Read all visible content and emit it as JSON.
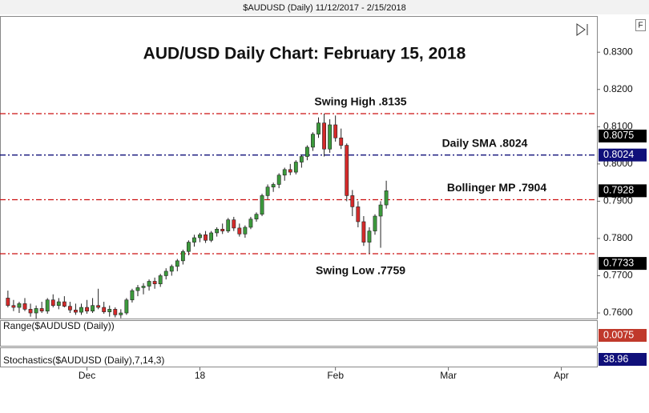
{
  "chart_data": {
    "type": "candlestick",
    "header": "$AUDUSD (Daily)  11/12/2017 - 2/15/2018",
    "title": "AUD/USD Daily Chart: February 15, 2018",
    "ylim": [
      0.7585,
      0.8395
    ],
    "yticks": [
      {
        "value": 0.83,
        "label": "0.8300"
      },
      {
        "value": 0.82,
        "label": "0.8200"
      },
      {
        "value": 0.81,
        "label": "0.8100"
      },
      {
        "value": 0.8,
        "label": "0.8000"
      },
      {
        "value": 0.79,
        "label": "0.7900"
      },
      {
        "value": 0.78,
        "label": "0.7800"
      },
      {
        "value": 0.77,
        "label": "0.7700"
      },
      {
        "value": 0.76,
        "label": "0.7600"
      }
    ],
    "xlim": [
      -1.4,
      104.3
    ],
    "xticks": [
      {
        "value": 14,
        "label": "Dec"
      },
      {
        "value": 34,
        "label": "18"
      },
      {
        "value": 58,
        "label": "Feb"
      },
      {
        "value": 78,
        "label": "Mar"
      },
      {
        "value": 98,
        "label": "Apr"
      }
    ],
    "up_color": "#3c9a3c",
    "down_color": "#d42a2a",
    "ohlc": [
      [
        0.764,
        0.766,
        0.7615,
        0.762
      ],
      [
        0.762,
        0.7635,
        0.7605,
        0.7615
      ],
      [
        0.7615,
        0.763,
        0.76,
        0.7625
      ],
      [
        0.7625,
        0.764,
        0.7605,
        0.761
      ],
      [
        0.761,
        0.7625,
        0.759,
        0.76
      ],
      [
        0.76,
        0.762,
        0.7585,
        0.7612
      ],
      [
        0.7612,
        0.763,
        0.76,
        0.7605
      ],
      [
        0.7605,
        0.764,
        0.7598,
        0.7635
      ],
      [
        0.7635,
        0.765,
        0.7615,
        0.762
      ],
      [
        0.762,
        0.764,
        0.761,
        0.763
      ],
      [
        0.763,
        0.7645,
        0.7615,
        0.7618
      ],
      [
        0.7618,
        0.763,
        0.76,
        0.7608
      ],
      [
        0.7608,
        0.7625,
        0.7595,
        0.7602
      ],
      [
        0.7602,
        0.7625,
        0.7595,
        0.7615
      ],
      [
        0.7615,
        0.7635,
        0.7598,
        0.7605
      ],
      [
        0.7605,
        0.764,
        0.76,
        0.762
      ],
      [
        0.762,
        0.7665,
        0.761,
        0.7615
      ],
      [
        0.7615,
        0.763,
        0.7598,
        0.7603
      ],
      [
        0.7603,
        0.762,
        0.759,
        0.761
      ],
      [
        0.761,
        0.7615,
        0.7588,
        0.7595
      ],
      [
        0.7595,
        0.761,
        0.7586,
        0.76
      ],
      [
        0.76,
        0.764,
        0.7595,
        0.7635
      ],
      [
        0.7635,
        0.7665,
        0.7628,
        0.766
      ],
      [
        0.766,
        0.7675,
        0.7645,
        0.7668
      ],
      [
        0.7668,
        0.768,
        0.765,
        0.7672
      ],
      [
        0.7672,
        0.769,
        0.766,
        0.7685
      ],
      [
        0.7685,
        0.7695,
        0.7665,
        0.7678
      ],
      [
        0.7678,
        0.7705,
        0.767,
        0.77
      ],
      [
        0.77,
        0.772,
        0.769,
        0.7712
      ],
      [
        0.7712,
        0.773,
        0.77,
        0.7725
      ],
      [
        0.7725,
        0.7745,
        0.7712,
        0.774
      ],
      [
        0.774,
        0.777,
        0.773,
        0.7765
      ],
      [
        0.7765,
        0.7795,
        0.7755,
        0.779
      ],
      [
        0.779,
        0.781,
        0.7778,
        0.7802
      ],
      [
        0.7802,
        0.7815,
        0.779,
        0.781
      ],
      [
        0.781,
        0.782,
        0.7788,
        0.7795
      ],
      [
        0.7795,
        0.782,
        0.779,
        0.7815
      ],
      [
        0.7815,
        0.783,
        0.7805,
        0.7825
      ],
      [
        0.7825,
        0.784,
        0.7812,
        0.782
      ],
      [
        0.782,
        0.7855,
        0.7815,
        0.785
      ],
      [
        0.785,
        0.7858,
        0.782,
        0.7828
      ],
      [
        0.7828,
        0.784,
        0.7805,
        0.7812
      ],
      [
        0.7812,
        0.7835,
        0.7802,
        0.783
      ],
      [
        0.783,
        0.7858,
        0.7825,
        0.7852
      ],
      [
        0.7852,
        0.787,
        0.7845,
        0.7865
      ],
      [
        0.7865,
        0.792,
        0.786,
        0.7915
      ],
      [
        0.7915,
        0.7945,
        0.7905,
        0.7938
      ],
      [
        0.7938,
        0.795,
        0.7925,
        0.7945
      ],
      [
        0.7945,
        0.7975,
        0.7935,
        0.797
      ],
      [
        0.797,
        0.799,
        0.7955,
        0.7985
      ],
      [
        0.7985,
        0.8,
        0.797,
        0.7978
      ],
      [
        0.7978,
        0.801,
        0.7972,
        0.8005
      ],
      [
        0.8005,
        0.8025,
        0.799,
        0.802
      ],
      [
        0.802,
        0.805,
        0.801,
        0.8045
      ],
      [
        0.8045,
        0.8085,
        0.8035,
        0.808
      ],
      [
        0.808,
        0.8125,
        0.807,
        0.811
      ],
      [
        0.811,
        0.8135,
        0.802,
        0.804
      ],
      [
        0.804,
        0.812,
        0.803,
        0.8105
      ],
      [
        0.8105,
        0.813,
        0.806,
        0.807
      ],
      [
        0.807,
        0.8095,
        0.804,
        0.805
      ],
      [
        0.805,
        0.8055,
        0.79,
        0.7915
      ],
      [
        0.7915,
        0.793,
        0.786,
        0.7885
      ],
      [
        0.7885,
        0.79,
        0.783,
        0.7845
      ],
      [
        0.7845,
        0.786,
        0.778,
        0.779
      ],
      [
        0.779,
        0.783,
        0.7759,
        0.782
      ],
      [
        0.782,
        0.7865,
        0.781,
        0.786
      ],
      [
        0.786,
        0.79,
        0.7775,
        0.789
      ],
      [
        0.789,
        0.7955,
        0.788,
        0.7928
      ]
    ],
    "levels": [
      {
        "label": "Swing High .8135",
        "value": 0.8135,
        "color": "#cc1111"
      },
      {
        "label": "Daily SMA .8024",
        "value": 0.8024,
        "color": "#10107a"
      },
      {
        "label": "Bollinger MP .7904",
        "value": 0.7904,
        "color": "#cc1111"
      },
      {
        "label": "Swing Low .7759",
        "value": 0.7759,
        "color": "#cc1111"
      }
    ],
    "price_tags": [
      {
        "value": 0.8075,
        "label": "0.8075",
        "color": "#000000"
      },
      {
        "value": 0.8024,
        "label": "0.8024",
        "color": "#10107a"
      },
      {
        "value": 0.7928,
        "label": "0.7928",
        "color": "#000000"
      },
      {
        "value": 0.7733,
        "label": "0.7733",
        "color": "#000000"
      }
    ],
    "panels": [
      {
        "name": "Range($AUDUSD (Daily))",
        "tag": {
          "value": 0.0075,
          "label": "0.0075"
        },
        "color": "#c0392b"
      },
      {
        "name": "Stochastics($AUDUSD (Daily),7,14,3)",
        "tag": 38.96,
        "color": "#10107a"
      }
    ]
  }
}
